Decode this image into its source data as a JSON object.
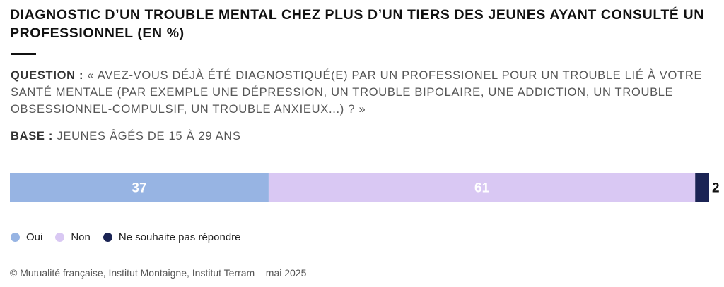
{
  "header": {
    "title": "DIAGNOSTIC D’UN TROUBLE MENTAL CHEZ PLUS D’UN TIERS DES JEUNES AYANT CONSULTÉ UN PROFESSIONNEL (EN %)",
    "question_label": "QUESTION :",
    "question_text": " « AVEZ-VOUS DÉJÀ ÉTÉ DIAGNOSTIQUÉ(E) PAR UN PROFESSIONEL POUR UN TROUBLE LIÉ À VOTRE SANTÉ MENTALE (PAR EXEMPLE UNE DÉPRESSION, UN TROUBLE BIPOLAIRE, UNE ADDICTION, UN TROUBLE OBSESSIONNEL-COMPULSIF, UN TROUBLE ANXIEUX...) ? »",
    "base_label": "BASE :",
    "base_text": " JEUNES ÂGÉS DE 15 À 29 ANS"
  },
  "chart_data": {
    "type": "bar",
    "stacked": true,
    "orientation": "horizontal",
    "xlim": [
      0,
      100
    ],
    "series": [
      {
        "name": "Oui",
        "values": [
          37
        ],
        "color": "#97b4e3",
        "label": "37"
      },
      {
        "name": "Non",
        "values": [
          61
        ],
        "color": "#d9c8f3",
        "label": "61"
      },
      {
        "name": "Ne souhaite pas répondre",
        "values": [
          2
        ],
        "color": "#1b2454",
        "label": "2"
      }
    ],
    "legend_position": "bottom-left",
    "grid": false
  },
  "footer": {
    "source": "© Mutualité française, Institut Montaigne, Institut Terram – mai 2025"
  }
}
